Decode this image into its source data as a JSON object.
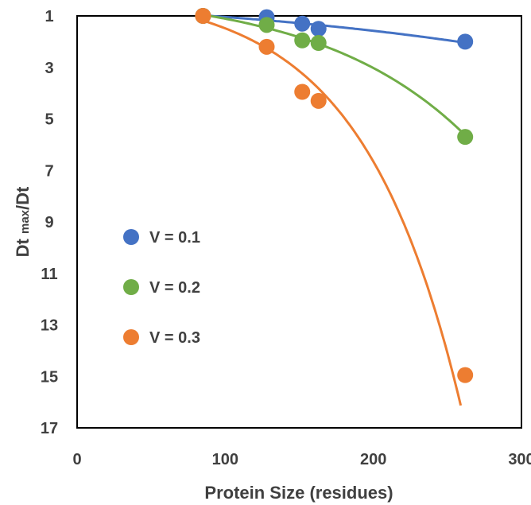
{
  "chart_data": {
    "type": "scatter",
    "xlabel": "Protein Size (residues)",
    "ylabel": "Dt max/Dt",
    "ylabel_main": "Dt ",
    "ylabel_sub": "max",
    "ylabel_tail": "/Dt",
    "xlim": [
      0,
      300
    ],
    "ylim": [
      1,
      17
    ],
    "y_inverted": true,
    "x_ticks": [
      0,
      100,
      200,
      300
    ],
    "y_ticks": [
      1,
      3,
      5,
      7,
      9,
      11,
      13,
      15,
      17
    ],
    "grid": false,
    "legend_position": "left-middle",
    "series": [
      {
        "name": "V = 0.1",
        "color": "#4472C4",
        "x": [
          85,
          128,
          152,
          163,
          262
        ],
        "y": [
          1.0,
          1.05,
          1.3,
          1.5,
          2.0
        ],
        "trend": "exponential",
        "trend_range": [
          85,
          262
        ]
      },
      {
        "name": "V = 0.2",
        "color": "#70AD47",
        "x": [
          85,
          128,
          152,
          163,
          262
        ],
        "y": [
          1.0,
          1.35,
          1.95,
          2.05,
          5.7
        ],
        "trend": "exponential",
        "trend_range": [
          85,
          262
        ]
      },
      {
        "name": "V = 0.3",
        "color": "#ED7D31",
        "x": [
          85,
          128,
          152,
          163,
          262
        ],
        "y": [
          1.0,
          2.2,
          3.95,
          4.3,
          14.95
        ],
        "trend": "exponential",
        "trend_range": [
          85,
          259
        ]
      }
    ]
  }
}
